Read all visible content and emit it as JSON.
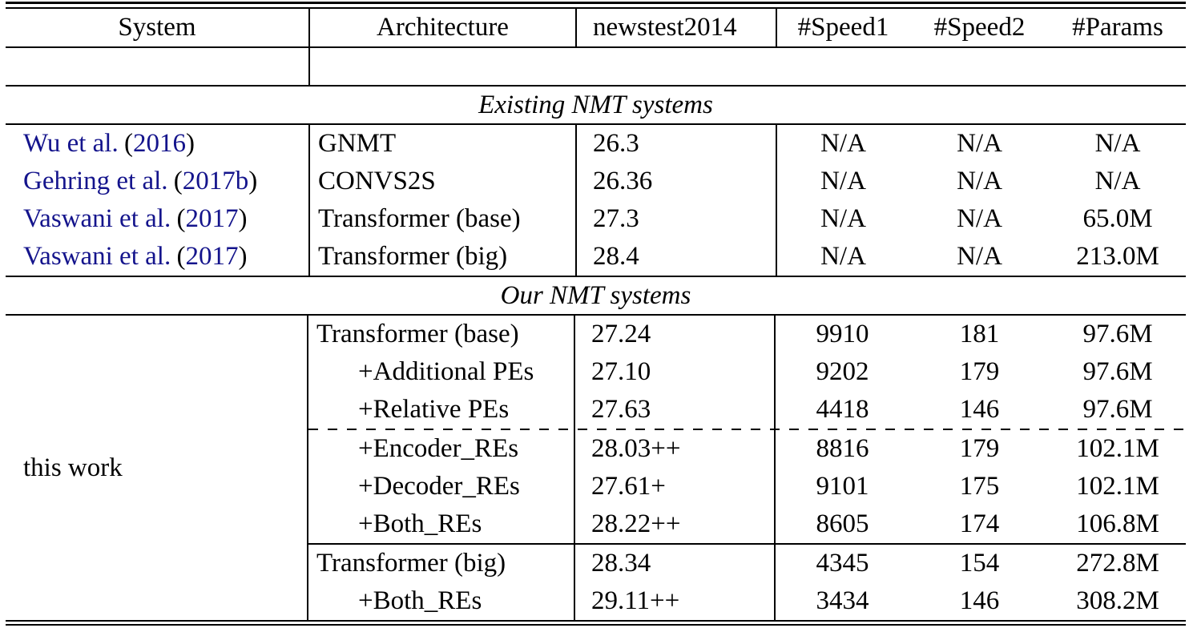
{
  "punct": {
    "open": "(",
    "close": ")"
  },
  "colors": {
    "citation": "#14148c",
    "text": "#000000",
    "background": "#ffffff"
  },
  "header": {
    "system": "System",
    "architecture": "Architecture",
    "newstest": "newstest2014",
    "speed1": "#Speed1",
    "speed2": "#Speed2",
    "params": "#Params"
  },
  "sections": {
    "existing": {
      "title": "Existing NMT systems",
      "rows": [
        {
          "cite_name": "Wu et al.",
          "cite_year": "2016",
          "arch": "GNMT",
          "bleu": "26.3",
          "speed1": "N/A",
          "speed2": "N/A",
          "params": "N/A"
        },
        {
          "cite_name": "Gehring et al.",
          "cite_year": "2017b",
          "arch": "CONVS2S",
          "bleu": "26.36",
          "speed1": "N/A",
          "speed2": "N/A",
          "params": "N/A"
        },
        {
          "cite_name": "Vaswani et al.",
          "cite_year": "2017",
          "arch": "Transformer (base)",
          "bleu": "27.3",
          "speed1": "N/A",
          "speed2": "N/A",
          "params": "65.0M"
        },
        {
          "cite_name": "Vaswani et al.",
          "cite_year": "2017",
          "arch": "Transformer (big)",
          "bleu": "28.4",
          "speed1": "N/A",
          "speed2": "N/A",
          "params": "213.0M"
        }
      ]
    },
    "ours": {
      "title": "Our NMT systems",
      "system_label": "this work",
      "rows": [
        {
          "arch": "Transformer (base)",
          "bleu": "27.24",
          "speed1": "9910",
          "speed2": "181",
          "params": "97.6M"
        },
        {
          "arch": "+Additional PEs",
          "bleu": "27.10",
          "speed1": "9202",
          "speed2": "179",
          "params": "97.6M"
        },
        {
          "arch": "+Relative PEs",
          "bleu": "27.63",
          "speed1": "4418",
          "speed2": "146",
          "params": "97.6M"
        },
        {
          "arch": "+Encoder_REs",
          "bleu": "28.03++",
          "speed1": "8816",
          "speed2": "179",
          "params": "102.1M"
        },
        {
          "arch": "+Decoder_REs",
          "bleu": "27.61+",
          "speed1": "9101",
          "speed2": "175",
          "params": "102.1M"
        },
        {
          "arch": "+Both_REs",
          "bleu": "28.22++",
          "speed1": "8605",
          "speed2": "174",
          "params": "106.8M"
        },
        {
          "arch": "Transformer (big)",
          "bleu": "28.34",
          "speed1": "4345",
          "speed2": "154",
          "params": "272.8M"
        },
        {
          "arch": "+Both_REs",
          "bleu": "29.11++",
          "speed1": "3434",
          "speed2": "146",
          "params": "308.2M"
        }
      ]
    }
  }
}
